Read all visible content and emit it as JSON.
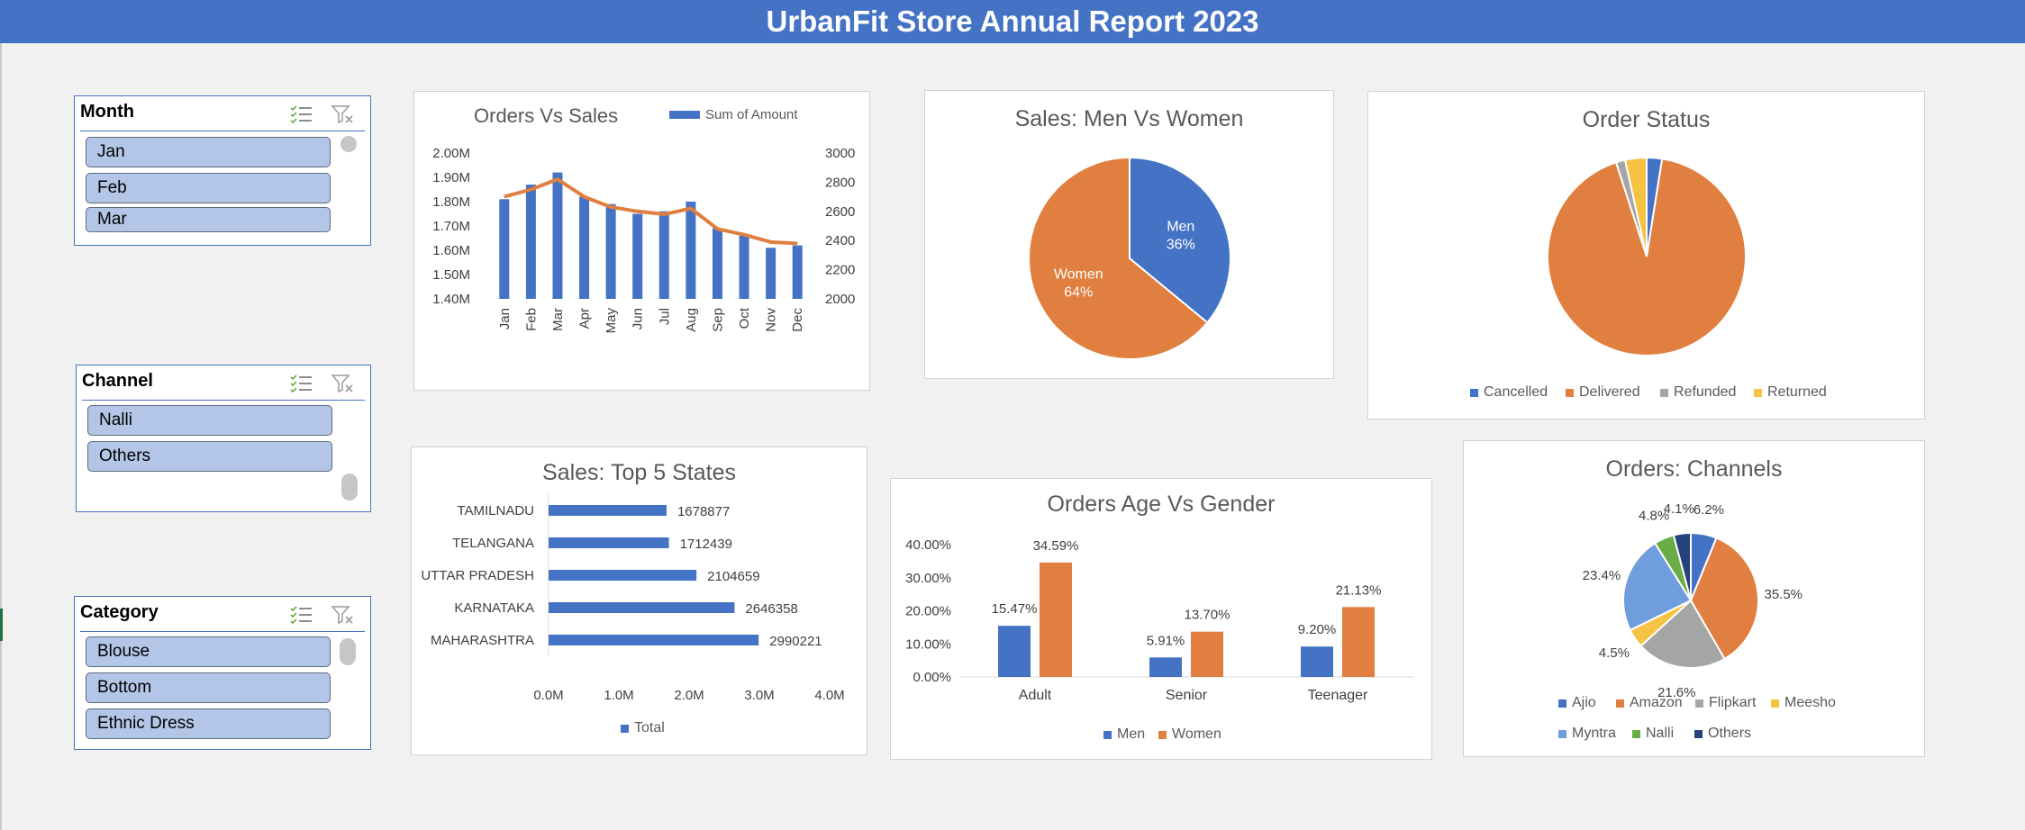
{
  "title": "UrbanFit Store Annual Report 2023",
  "colors": {
    "blue": "#4472c4",
    "orange": "#e07f3f",
    "gray": "#a5a5a5",
    "yellow": "#f6c242",
    "lightblue": "#6f9ddd",
    "green": "#6aad47",
    "navy": "#26427a"
  },
  "slicers": {
    "month": {
      "title": "Month",
      "items": [
        "Jan",
        "Feb",
        "Mar"
      ]
    },
    "channel": {
      "title": "Channel",
      "items": [
        "Nalli",
        "Others"
      ]
    },
    "category": {
      "title": "Category",
      "items": [
        "Blouse",
        "Bottom",
        "Ethnic Dress"
      ]
    }
  },
  "chart_data": [
    {
      "id": "orders_vs_sales",
      "type": "bar",
      "title": "Orders Vs Sales",
      "legend": [
        "Sum of Amount"
      ],
      "categories": [
        "Jan",
        "Feb",
        "Mar",
        "Apr",
        "May",
        "Jun",
        "Jul",
        "Aug",
        "Sep",
        "Oct",
        "Nov",
        "Dec"
      ],
      "series": [
        {
          "name": "Sum of Amount",
          "type": "bar",
          "values": [
            1.81,
            1.87,
            1.92,
            1.82,
            1.79,
            1.75,
            1.76,
            1.8,
            1.69,
            1.66,
            1.61,
            1.62
          ]
        },
        {
          "type": "line",
          "axis": "secondary",
          "values": [
            2700,
            2750,
            2820,
            2700,
            2630,
            2600,
            2580,
            2620,
            2480,
            2440,
            2390,
            2380
          ]
        }
      ],
      "y_ticks": [
        "2.00M",
        "1.90M",
        "1.80M",
        "1.70M",
        "1.60M",
        "1.50M",
        "1.40M"
      ],
      "y2_ticks": [
        "3000",
        "2800",
        "2600",
        "2400",
        "2200",
        "2000"
      ],
      "ylim": [
        1.4,
        2.0
      ],
      "y2lim": [
        2000,
        3000
      ]
    },
    {
      "id": "men_vs_women",
      "type": "pie",
      "title": "Sales: Men Vs Women",
      "slices": [
        {
          "label": "Men",
          "pct": "36%",
          "value": 36
        },
        {
          "label": "Women",
          "pct": "64%",
          "value": 64
        }
      ]
    },
    {
      "id": "order_status",
      "type": "pie",
      "title": "Order Status",
      "legend": [
        "Cancelled",
        "Delivered",
        "Refunded",
        "Returned"
      ],
      "values": [
        2.5,
        92.5,
        1.5,
        3.5
      ]
    },
    {
      "id": "top5_states",
      "type": "bar",
      "orientation": "horizontal",
      "title": "Sales: Top 5 States",
      "categories": [
        "TAMILNADU",
        "TELANGANA",
        "UTTAR PRADESH",
        "KARNATAKA",
        "MAHARASHTRA"
      ],
      "values": [
        1678877,
        1712439,
        2104659,
        2646358,
        2990221
      ],
      "x_ticks": [
        "0.0M",
        "1.0M",
        "2.0M",
        "3.0M",
        "4.0M"
      ],
      "xlim": [
        0,
        4000000
      ],
      "legend": [
        "Total"
      ]
    },
    {
      "id": "age_vs_gender",
      "type": "bar",
      "title": "Orders Age Vs Gender",
      "categories": [
        "Adult",
        "Senior",
        "Teenager"
      ],
      "series": [
        {
          "name": "Men",
          "values": [
            15.47,
            5.91,
            9.2
          ],
          "labels": [
            "15.47%",
            "5.91%",
            "9.20%"
          ]
        },
        {
          "name": "Women",
          "values": [
            34.59,
            13.7,
            21.13
          ],
          "labels": [
            "34.59%",
            "13.70%",
            "21.13%"
          ]
        }
      ],
      "y_ticks": [
        "40.00%",
        "30.00%",
        "20.00%",
        "10.00%",
        "0.00%"
      ],
      "ylim": [
        0,
        40
      ]
    },
    {
      "id": "channels",
      "type": "pie",
      "title": "Orders: Channels",
      "slices": [
        {
          "label": "Ajio",
          "value": 6.2,
          "text": "6.2%"
        },
        {
          "label": "Amazon",
          "value": 35.5,
          "text": "35.5%"
        },
        {
          "label": "Flipkart",
          "value": 21.6,
          "text": "21.6%"
        },
        {
          "label": "Meesho",
          "value": 4.5,
          "text": "4.5%"
        },
        {
          "label": "Myntra",
          "value": 23.4,
          "text": "23.4%"
        },
        {
          "label": "Nalli",
          "value": 4.8,
          "text": "4.8%"
        },
        {
          "label": "Others",
          "value": 4.1,
          "text": "4.1%"
        }
      ]
    }
  ]
}
